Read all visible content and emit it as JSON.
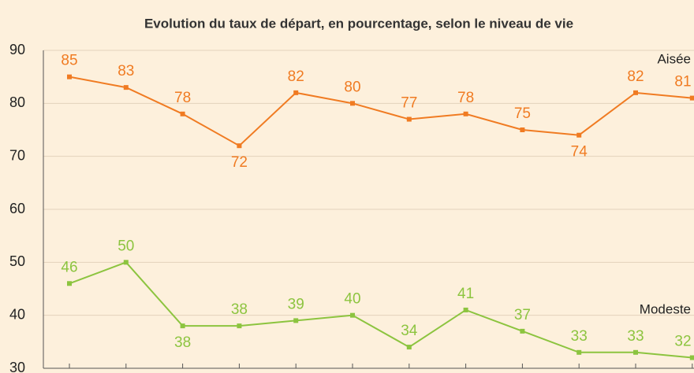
{
  "chart_data": {
    "type": "line",
    "title": "Evolution du taux de départ, en pourcentage, selon le niveau de vie",
    "categories": [
      null,
      null,
      null,
      null,
      null,
      null,
      null,
      null,
      null,
      null,
      null,
      null
    ],
    "series": [
      {
        "name": "Aisée",
        "color": "#f07b22",
        "values": [
          85,
          83,
          78,
          72,
          82,
          80,
          77,
          78,
          75,
          74,
          82,
          81
        ]
      },
      {
        "name": "Modeste",
        "color": "#8cc43f",
        "values": [
          46,
          50,
          38,
          38,
          39,
          40,
          34,
          41,
          37,
          33,
          33,
          32
        ]
      }
    ],
    "ylim": [
      30,
      90
    ],
    "yticks": [
      30,
      40,
      50,
      60,
      70,
      80,
      90
    ],
    "grid": true
  }
}
